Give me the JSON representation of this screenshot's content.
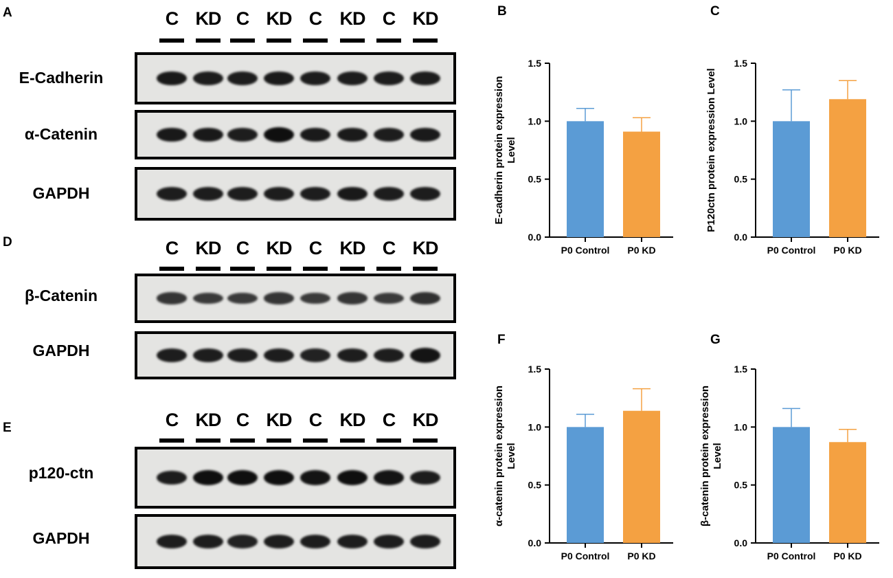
{
  "blots": [
    {
      "letter": "A",
      "lanes": [
        "C",
        "KD",
        "C",
        "KD",
        "C",
        "KD",
        "C",
        "KD"
      ],
      "rows": [
        {
          "label": "E-Cadherin",
          "band_intensity": [
            0.9,
            0.85,
            0.85,
            0.88,
            0.85,
            0.85,
            0.85,
            0.85
          ]
        },
        {
          "label": "α-Catenin",
          "band_intensity": [
            0.9,
            0.9,
            0.85,
            1.0,
            0.88,
            0.88,
            0.85,
            0.88
          ]
        },
        {
          "label": "GAPDH",
          "band_intensity": [
            0.85,
            0.85,
            0.85,
            0.85,
            0.85,
            0.9,
            0.85,
            0.85
          ]
        }
      ]
    },
    {
      "letter": "D",
      "lanes": [
        "C",
        "KD",
        "C",
        "KD",
        "C",
        "KD",
        "C",
        "KD"
      ],
      "rows": [
        {
          "label": "β-Catenin",
          "band_intensity": [
            0.6,
            0.55,
            0.55,
            0.6,
            0.55,
            0.6,
            0.55,
            0.65
          ]
        },
        {
          "label": "GAPDH",
          "band_intensity": [
            0.85,
            0.85,
            0.85,
            0.85,
            0.8,
            0.85,
            0.85,
            0.95
          ]
        }
      ]
    },
    {
      "letter": "E",
      "lanes": [
        "C",
        "KD",
        "C",
        "KD",
        "C",
        "KD",
        "C",
        "KD"
      ],
      "rows": [
        {
          "label": "p120-ctn",
          "band_intensity": [
            0.85,
            1.0,
            1.0,
            1.0,
            0.95,
            1.0,
            0.95,
            0.85
          ]
        },
        {
          "label": "GAPDH",
          "band_intensity": [
            0.85,
            0.85,
            0.8,
            0.85,
            0.85,
            0.85,
            0.85,
            0.85
          ]
        }
      ]
    }
  ],
  "chart_data": [
    {
      "letter": "B",
      "type": "bar",
      "categories": [
        "P0 Control",
        "P0 KD"
      ],
      "values": [
        1.0,
        0.91
      ],
      "errors": [
        0.11,
        0.12
      ],
      "ylabel": [
        "E-cadherin protein expression",
        "Level"
      ],
      "ylim": [
        0,
        1.5
      ],
      "yticks": [
        "0.0",
        "0.5",
        "1.0",
        "1.5"
      ],
      "colors": [
        "#5b9bd5",
        "#f4a142"
      ]
    },
    {
      "letter": "C",
      "type": "bar",
      "categories": [
        "P0 Control",
        "P0 KD"
      ],
      "values": [
        1.0,
        1.19
      ],
      "errors": [
        0.27,
        0.16
      ],
      "ylabel": [
        "P120ctn protein expression Level"
      ],
      "ylim": [
        0,
        1.5
      ],
      "yticks": [
        "0.0",
        "0.5",
        "1.0",
        "1.5"
      ],
      "colors": [
        "#5b9bd5",
        "#f4a142"
      ]
    },
    {
      "letter": "F",
      "type": "bar",
      "categories": [
        "P0 Control",
        "P0 KD"
      ],
      "values": [
        1.0,
        1.14
      ],
      "errors": [
        0.11,
        0.19
      ],
      "ylabel": [
        "α-catenin protein expression",
        "Level"
      ],
      "ylim": [
        0,
        1.5
      ],
      "yticks": [
        "0.0",
        "0.5",
        "1.0",
        "1.5"
      ],
      "colors": [
        "#5b9bd5",
        "#f4a142"
      ]
    },
    {
      "letter": "G",
      "type": "bar",
      "categories": [
        "P0 Control",
        "P0 KD"
      ],
      "values": [
        1.0,
        0.87
      ],
      "errors": [
        0.16,
        0.11
      ],
      "ylabel": [
        "β-catenin protein expression",
        "Level"
      ],
      "ylim": [
        0,
        1.5
      ],
      "yticks": [
        "0.0",
        "0.5",
        "1.0",
        "1.5"
      ],
      "colors": [
        "#5b9bd5",
        "#f4a142"
      ]
    }
  ]
}
